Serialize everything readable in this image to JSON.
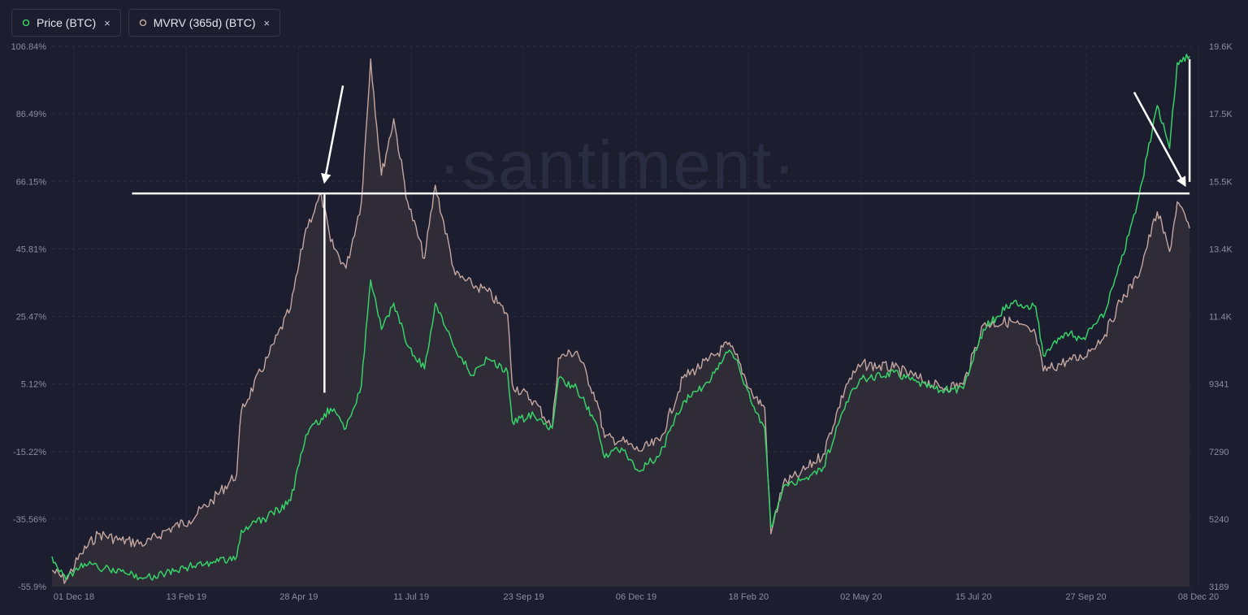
{
  "legend": {
    "price_label": "Price (BTC)",
    "mvrv_label": "MVRV (365d) (BTC)",
    "close_symbol": "×"
  },
  "watermark": "·santiment·",
  "colors": {
    "background": "#1c1e2f",
    "price": "#37d167",
    "mvrv": "#c4a6a0",
    "area": "#2f2c38",
    "annotation": "#ffffff",
    "grid": "#2a2d40"
  },
  "chart_data": {
    "type": "line",
    "x_tick_labels": [
      "01 Dec 18",
      "13 Feb 19",
      "28 Apr 19",
      "11 Jul 19",
      "23 Sep 19",
      "06 Dec 19",
      "18 Feb 20",
      "02 May 20",
      "15 Jul 20",
      "27 Sep 20",
      "08 Dec 20"
    ],
    "x_range": [
      "2018-12-01",
      "2020-12-10"
    ],
    "y_left_ticks": [
      "106.84%",
      "86.49%",
      "66.15%",
      "45.81%",
      "25.47%",
      "5.12%",
      "-15.22%",
      "-35.56%",
      "-55.9%"
    ],
    "y_left_range": [
      -55.9,
      106.84
    ],
    "y_right_ticks": [
      "19.6K",
      "17.5K",
      "15.5K",
      "13.4K",
      "11.4K",
      "9341",
      "7290",
      "5240",
      "3189"
    ],
    "y_right_range": [
      3189,
      19600
    ],
    "grid": true,
    "series": [
      {
        "name": "Price (BTC)",
        "axis": "right",
        "points": [
          [
            "2018-12-01",
            4100
          ],
          [
            "2018-12-10",
            3400
          ],
          [
            "2018-12-20",
            3900
          ],
          [
            "2018-12-31",
            3750
          ],
          [
            "2019-01-15",
            3650
          ],
          [
            "2019-01-31",
            3450
          ],
          [
            "2019-02-13",
            3600
          ],
          [
            "2019-02-28",
            3800
          ],
          [
            "2019-03-15",
            3900
          ],
          [
            "2019-03-31",
            4100
          ],
          [
            "2019-04-03",
            4900
          ],
          [
            "2019-04-20",
            5300
          ],
          [
            "2019-05-05",
            5800
          ],
          [
            "2019-05-15",
            7800
          ],
          [
            "2019-05-25",
            8300
          ],
          [
            "2019-05-31",
            8600
          ],
          [
            "2019-06-10",
            8000
          ],
          [
            "2019-06-20",
            9300
          ],
          [
            "2019-06-26",
            12500
          ],
          [
            "2019-07-03",
            11000
          ],
          [
            "2019-07-11",
            11800
          ],
          [
            "2019-07-20",
            10500
          ],
          [
            "2019-07-31",
            9800
          ],
          [
            "2019-08-07",
            11800
          ],
          [
            "2019-08-20",
            10400
          ],
          [
            "2019-08-31",
            9600
          ],
          [
            "2019-09-10",
            10100
          ],
          [
            "2019-09-23",
            9700
          ],
          [
            "2019-09-26",
            8200
          ],
          [
            "2019-10-10",
            8400
          ],
          [
            "2019-10-22",
            8000
          ],
          [
            "2019-10-26",
            9500
          ],
          [
            "2019-11-07",
            9200
          ],
          [
            "2019-11-20",
            8100
          ],
          [
            "2019-11-25",
            7100
          ],
          [
            "2019-12-06",
            7400
          ],
          [
            "2019-12-17",
            6700
          ],
          [
            "2019-12-31",
            7200
          ],
          [
            "2020-01-15",
            8800
          ],
          [
            "2020-01-31",
            9400
          ],
          [
            "2020-02-13",
            10300
          ],
          [
            "2020-02-18",
            10100
          ],
          [
            "2020-02-29",
            8700
          ],
          [
            "2020-03-08",
            8000
          ],
          [
            "2020-03-12",
            5000
          ],
          [
            "2020-03-20",
            6200
          ],
          [
            "2020-03-31",
            6400
          ],
          [
            "2020-04-15",
            6800
          ],
          [
            "2020-04-30",
            8800
          ],
          [
            "2020-05-10",
            9500
          ],
          [
            "2020-05-31",
            9700
          ],
          [
            "2020-06-15",
            9400
          ],
          [
            "2020-06-30",
            9150
          ],
          [
            "2020-07-15",
            9200
          ],
          [
            "2020-07-28",
            11000
          ],
          [
            "2020-08-15",
            11800
          ],
          [
            "2020-08-31",
            11700
          ],
          [
            "2020-09-05",
            10200
          ],
          [
            "2020-09-20",
            10900
          ],
          [
            "2020-09-30",
            10700
          ],
          [
            "2020-10-15",
            11500
          ],
          [
            "2020-10-25",
            13000
          ],
          [
            "2020-11-05",
            14800
          ],
          [
            "2020-11-18",
            17800
          ],
          [
            "2020-11-26",
            16500
          ],
          [
            "2020-12-01",
            19100
          ],
          [
            "2020-12-09",
            19300
          ]
        ]
      },
      {
        "name": "MVRV (365d) (BTC)",
        "axis": "left",
        "points": [
          [
            "2018-12-01",
            -51
          ],
          [
            "2018-12-10",
            -54
          ],
          [
            "2018-12-20",
            -46
          ],
          [
            "2018-12-31",
            -40
          ],
          [
            "2019-01-15",
            -42
          ],
          [
            "2019-01-31",
            -43
          ],
          [
            "2019-02-13",
            -39
          ],
          [
            "2019-02-28",
            -36
          ],
          [
            "2019-03-15",
            -30
          ],
          [
            "2019-03-31",
            -22
          ],
          [
            "2019-04-03",
            -3
          ],
          [
            "2019-04-20",
            13
          ],
          [
            "2019-05-05",
            28
          ],
          [
            "2019-05-15",
            52
          ],
          [
            "2019-05-25",
            62
          ],
          [
            "2019-05-31",
            48
          ],
          [
            "2019-06-10",
            40
          ],
          [
            "2019-06-20",
            60
          ],
          [
            "2019-06-26",
            103
          ],
          [
            "2019-07-03",
            68
          ],
          [
            "2019-07-11",
            85
          ],
          [
            "2019-07-20",
            60
          ],
          [
            "2019-07-31",
            43
          ],
          [
            "2019-08-07",
            65
          ],
          [
            "2019-08-20",
            38
          ],
          [
            "2019-08-31",
            35
          ],
          [
            "2019-09-10",
            33
          ],
          [
            "2019-09-23",
            26
          ],
          [
            "2019-09-26",
            5
          ],
          [
            "2019-10-10",
            0
          ],
          [
            "2019-10-22",
            -8
          ],
          [
            "2019-10-26",
            13
          ],
          [
            "2019-11-07",
            15
          ],
          [
            "2019-11-20",
            0
          ],
          [
            "2019-11-25",
            -11
          ],
          [
            "2019-12-06",
            -12
          ],
          [
            "2019-12-17",
            -15
          ],
          [
            "2019-12-31",
            -12
          ],
          [
            "2020-01-15",
            7
          ],
          [
            "2020-01-31",
            12
          ],
          [
            "2020-02-13",
            17
          ],
          [
            "2020-02-18",
            14
          ],
          [
            "2020-02-29",
            2
          ],
          [
            "2020-03-08",
            -2
          ],
          [
            "2020-03-12",
            -40
          ],
          [
            "2020-03-20",
            -25
          ],
          [
            "2020-03-31",
            -22
          ],
          [
            "2020-04-15",
            -16
          ],
          [
            "2020-04-30",
            5
          ],
          [
            "2020-05-10",
            11
          ],
          [
            "2020-05-31",
            10
          ],
          [
            "2020-06-15",
            7
          ],
          [
            "2020-06-30",
            4
          ],
          [
            "2020-07-15",
            5
          ],
          [
            "2020-07-28",
            23
          ],
          [
            "2020-08-15",
            24
          ],
          [
            "2020-08-31",
            20
          ],
          [
            "2020-09-05",
            9
          ],
          [
            "2020-09-20",
            12
          ],
          [
            "2020-09-30",
            13
          ],
          [
            "2020-10-15",
            20
          ],
          [
            "2020-10-25",
            30
          ],
          [
            "2020-11-05",
            37
          ],
          [
            "2020-11-18",
            57
          ],
          [
            "2020-11-26",
            45
          ],
          [
            "2020-12-01",
            60
          ],
          [
            "2020-12-09",
            52
          ]
        ]
      }
    ],
    "annotations": [
      {
        "type": "hline",
        "axis": "left",
        "y": 62.5,
        "x_from": "2019-01-22",
        "x_to": "2020-12-09"
      },
      {
        "type": "vline",
        "x": "2019-05-27",
        "y_from": 2.5,
        "y_to": 62.5
      },
      {
        "type": "vline",
        "x": "2020-12-09",
        "y_from": 66,
        "y_to": 103
      },
      {
        "type": "arrow",
        "from": [
          "2019-06-08",
          95
        ],
        "to": [
          "2019-05-27",
          66
        ]
      },
      {
        "type": "arrow",
        "from": [
          "2020-11-03",
          93
        ],
        "to": [
          "2020-12-06",
          65
        ]
      }
    ]
  }
}
